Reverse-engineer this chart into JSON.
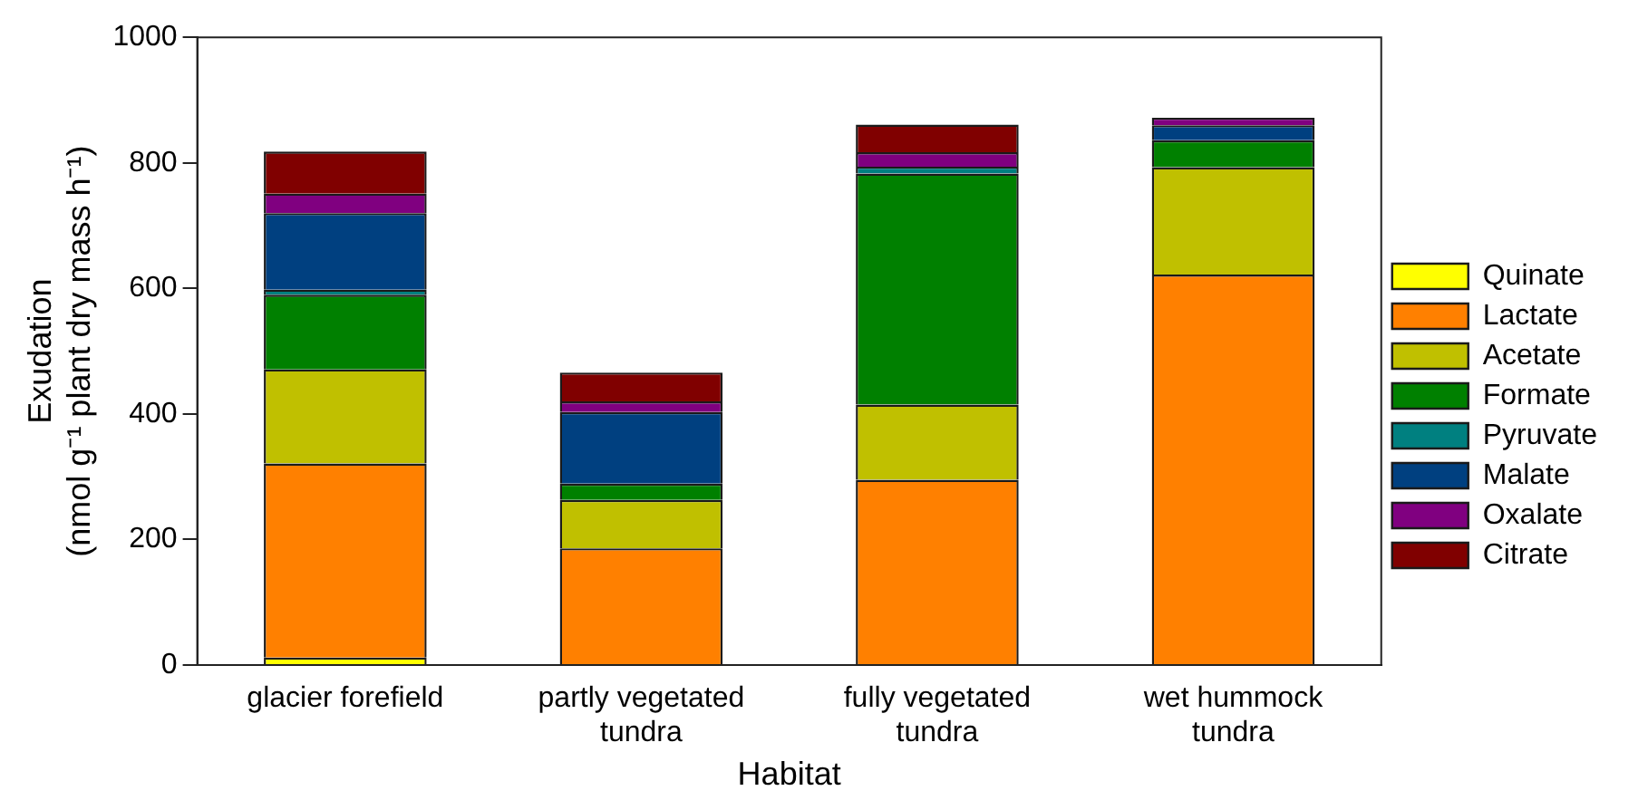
{
  "chart_data": {
    "type": "bar",
    "stacked": true,
    "xlabel": "Habitat",
    "ylabel": "Exudation\n(nmol g⁻¹ plant dry mass h⁻¹)",
    "categories": [
      "glacier forefield",
      "partly vegetated tundra",
      "fully vegetated tundra",
      "wet hummock tundra"
    ],
    "series": [
      {
        "name": "Quinate",
        "color": "#ffff00",
        "values": [
          12,
          0,
          0,
          0
        ]
      },
      {
        "name": "Lactate",
        "color": "#ff8000",
        "values": [
          309,
          186,
          295,
          622
        ]
      },
      {
        "name": "Acetate",
        "color": "#c0c000",
        "values": [
          150,
          77,
          120,
          171
        ]
      },
      {
        "name": "Formate",
        "color": "#008000",
        "values": [
          119,
          26,
          368,
          43
        ]
      },
      {
        "name": "Pyruvate",
        "color": "#008080",
        "values": [
          8,
          0,
          11,
          0
        ]
      },
      {
        "name": "Malate",
        "color": "#004080",
        "values": [
          122,
          114,
          0,
          24
        ]
      },
      {
        "name": "Oxalate",
        "color": "#800080",
        "values": [
          31,
          17,
          23,
          12
        ]
      },
      {
        "name": "Citrate",
        "color": "#800000",
        "values": [
          67,
          46,
          44,
          0
        ]
      }
    ],
    "ylim": [
      0,
      1000
    ],
    "yticks": [
      0,
      200,
      400,
      600,
      800,
      1000
    ],
    "grid": false,
    "legend": "right"
  }
}
